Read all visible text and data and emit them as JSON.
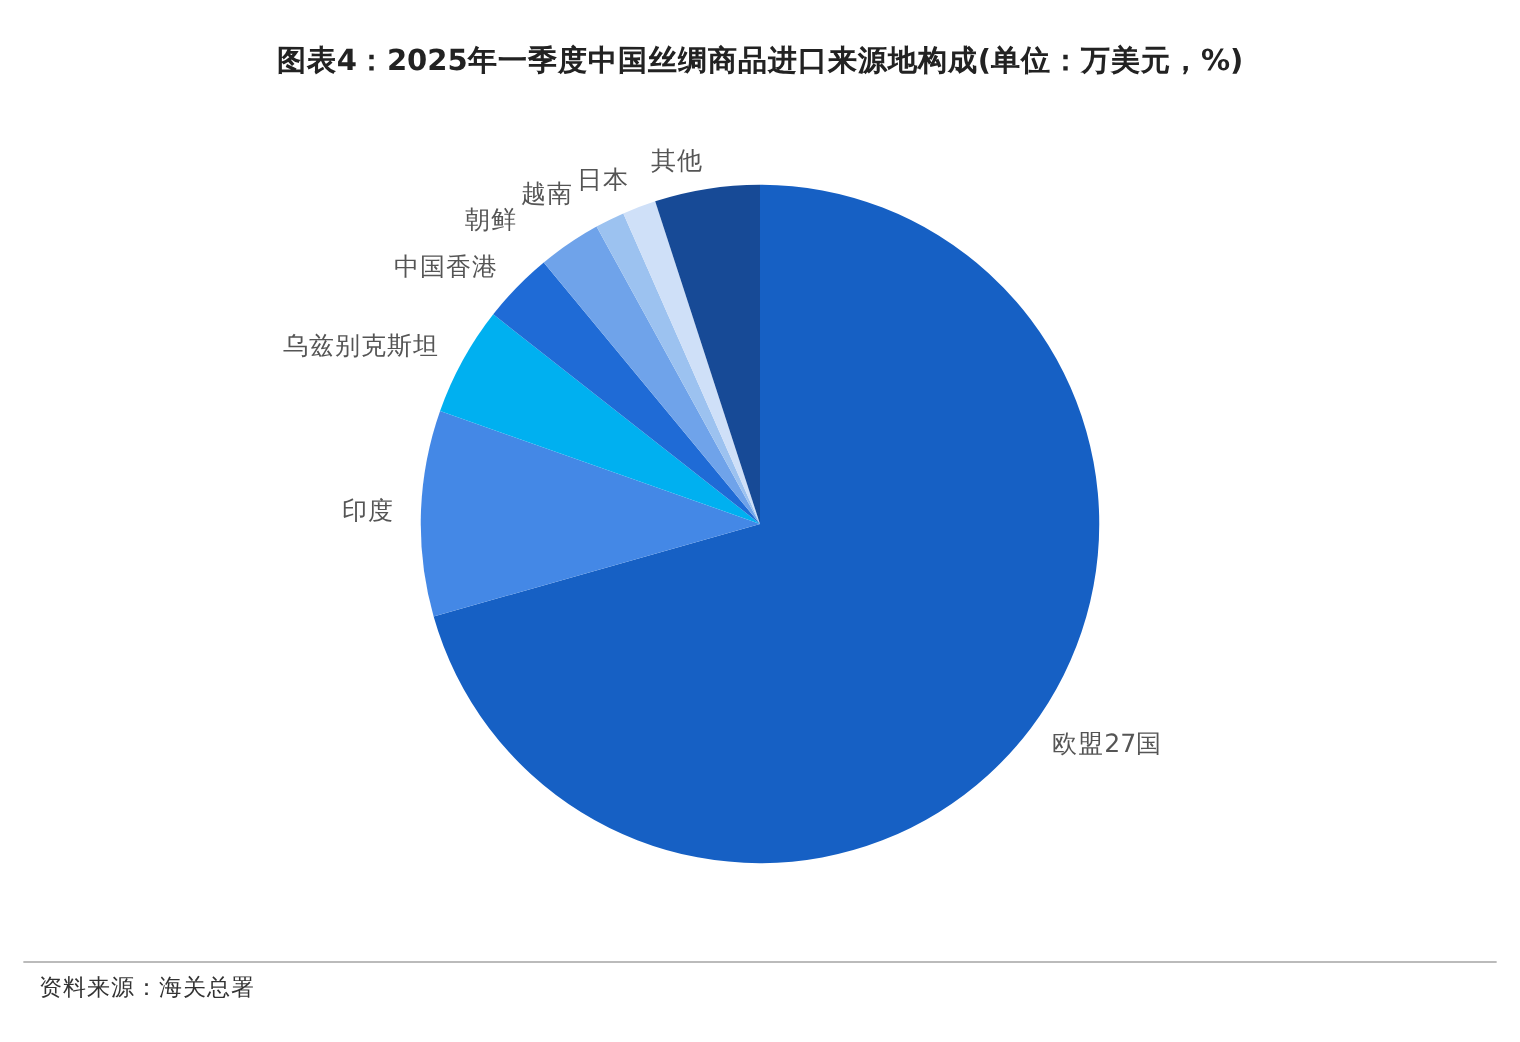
{
  "chart_data": {
    "type": "pie",
    "title": "图表4：2025年一季度中国丝绸商品进口来源地构成(单位：万美元，%)",
    "categories": [
      "欧盟27国",
      "印度",
      "乌兹别克斯坦",
      "中国香港",
      "朝鲜",
      "越南",
      "日本",
      "其他"
    ],
    "values": [
      70.6,
      9.8,
      5.2,
      3.4,
      3.0,
      1.4,
      1.6,
      5.0
    ],
    "colors": [
      "#1660c4",
      "#4488e6",
      "#00b0f0",
      "#1f6bd6",
      "#6fa3ea",
      "#9cc2f0",
      "#cfe0f8",
      "#174a96"
    ],
    "annotations": [
      "资料来源：海关总署"
    ],
    "legend": false
  }
}
